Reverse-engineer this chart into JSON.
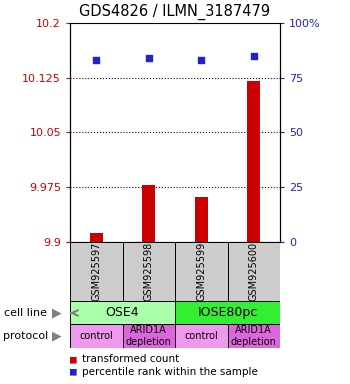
{
  "title": "GDS4826 / ILMN_3187479",
  "samples": [
    "GSM925597",
    "GSM925598",
    "GSM925599",
    "GSM925600"
  ],
  "bar_values": [
    9.912,
    9.978,
    9.962,
    10.12
  ],
  "percentile_values": [
    83,
    84,
    83,
    85
  ],
  "ylim_left": [
    9.9,
    10.2
  ],
  "ylim_right": [
    0,
    100
  ],
  "yticks_left": [
    9.9,
    9.975,
    10.05,
    10.125,
    10.2
  ],
  "ytick_labels_left": [
    "9.9",
    "9.975",
    "10.05",
    "10.125",
    "10.2"
  ],
  "yticks_right": [
    0,
    25,
    50,
    75,
    100
  ],
  "ytick_labels_right": [
    "0",
    "25",
    "50",
    "75",
    "100%"
  ],
  "bar_color": "#cc0000",
  "dot_color": "#2222cc",
  "cell_line_groups": [
    {
      "label": "OSE4",
      "start": 0,
      "end": 2,
      "color": "#aaffaa"
    },
    {
      "label": "IOSE80pc",
      "start": 2,
      "end": 4,
      "color": "#33ee33"
    }
  ],
  "protocol_groups": [
    {
      "label": "control",
      "start": 0,
      "end": 1,
      "color": "#ee99ee"
    },
    {
      "label": "ARID1A\ndepletion",
      "start": 1,
      "end": 2,
      "color": "#dd66dd"
    },
    {
      "label": "control",
      "start": 2,
      "end": 3,
      "color": "#ee99ee"
    },
    {
      "label": "ARID1A\ndepletion",
      "start": 3,
      "end": 4,
      "color": "#dd66dd"
    }
  ],
  "legend_items": [
    {
      "label": "transformed count",
      "color": "#cc0000"
    },
    {
      "label": "percentile rank within the sample",
      "color": "#2222cc"
    }
  ],
  "sample_box_color": "#cccccc",
  "ylabel_left_color": "#cc0000",
  "ylabel_right_color": "#2222cc",
  "bar_bottom": 9.9,
  "bar_width": 0.25
}
